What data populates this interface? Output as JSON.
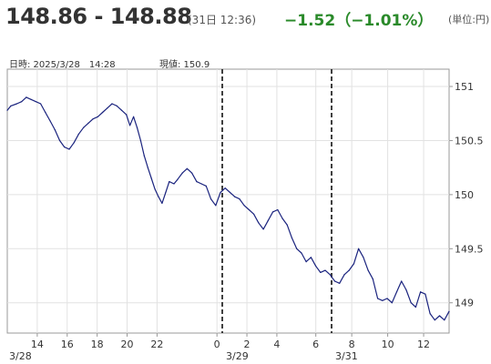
{
  "header": {
    "price_range": "148.86 - 148.88",
    "time": "(31日 12:36)",
    "change": "−1.52（−1.01%）",
    "unit": "(単位:円)",
    "change_color": "#2a8a2a"
  },
  "info": {
    "datetime": "日時: 2025/3/28　14:28",
    "current": "現値: 150.9"
  },
  "chart_data": {
    "type": "line",
    "title": "",
    "xlabel": "",
    "ylabel": "",
    "ylim": [
      148.72,
      151.16
    ],
    "y_ticks": [
      "151",
      "150.5",
      "150",
      "149.5",
      "149"
    ],
    "x_ticks": [
      "14",
      "16",
      "18",
      "20",
      "22",
      "0",
      "2",
      "4",
      "6",
      "8",
      "10",
      "12"
    ],
    "date_labels": [
      "3/28",
      "3/29",
      "3/31"
    ],
    "date_dividers_after_hours": [
      26,
      32
    ],
    "x_unit": "hours since 3/28 12:00",
    "x_range": [
      12,
      49.1
    ],
    "grid": true,
    "line_color": "#1a237e",
    "series": [
      {
        "x": [
          12.0,
          12.3,
          12.8,
          13.2,
          13.6,
          14.0,
          14.4,
          14.8,
          15.2,
          15.6,
          16.0,
          16.4,
          16.8,
          17.2,
          17.6,
          18.0,
          18.4,
          18.8,
          19.2,
          19.6,
          20.0,
          20.4,
          20.8,
          21.2,
          21.6,
          22.0,
          22.3,
          22.6,
          22.9,
          23.2,
          23.5,
          23.8,
          24.1,
          24.4,
          24.7,
          25.0,
          25.3,
          25.6,
          26.0,
          26.3,
          26.7,
          27.1,
          27.5,
          27.9,
          28.3,
          28.7,
          29.1,
          29.5,
          29.9,
          30.3,
          30.7,
          31.1,
          31.5,
          31.9,
          32.3,
          32.7,
          33.1,
          33.5,
          33.9,
          34.3,
          34.7,
          35.1,
          35.5,
          35.9,
          36.3,
          36.7,
          37.1,
          37.5,
          37.9,
          38.3,
          38.7,
          39.1,
          39.5,
          39.9,
          40.3,
          40.7,
          41.1,
          41.5,
          41.9,
          42.3,
          42.7,
          43.1,
          43.5,
          43.9,
          44.3,
          44.7,
          45.1,
          45.5,
          45.9,
          46.3,
          46.7,
          47.1,
          47.5,
          47.9,
          48.3,
          48.7,
          49.1
        ],
        "values": [
          150.78,
          150.82,
          150.84,
          150.86,
          150.9,
          150.88,
          150.86,
          150.84,
          150.76,
          150.68,
          150.6,
          150.5,
          150.44,
          150.42,
          150.48,
          150.56,
          150.62,
          150.66,
          150.7,
          150.72,
          150.76,
          150.8,
          150.84,
          150.82,
          150.78,
          150.74,
          150.64,
          150.72,
          150.62,
          150.5,
          150.36,
          150.25,
          150.15,
          150.05,
          149.98,
          149.92,
          150.02,
          150.12,
          150.1,
          150.14,
          150.2,
          150.24,
          150.2,
          150.12,
          150.1,
          150.08,
          149.96,
          149.9,
          150.02,
          150.06,
          150.02,
          149.98,
          149.96,
          149.9,
          149.86,
          149.82,
          149.74,
          149.68,
          149.76,
          149.84,
          149.86,
          149.78,
          149.72,
          149.6,
          149.5,
          149.46,
          149.38,
          149.42,
          149.34,
          149.28,
          149.3,
          149.26,
          149.2,
          149.18,
          149.26,
          149.3,
          149.36,
          149.5,
          149.42,
          149.3,
          149.22,
          149.04,
          149.02,
          149.04,
          149.0,
          149.1,
          149.2,
          149.12,
          149.0,
          148.96,
          149.1,
          149.08,
          148.9,
          148.84,
          148.88,
          148.84,
          148.92
        ]
      }
    ]
  }
}
